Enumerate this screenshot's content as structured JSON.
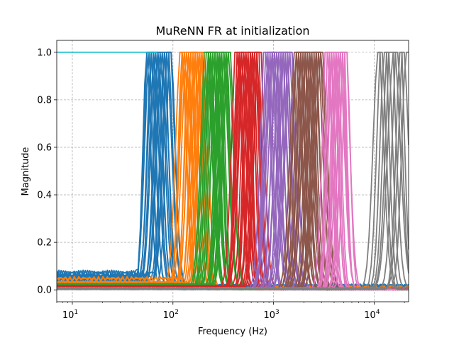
{
  "chart_data": {
    "type": "line",
    "title": "MuReNN FR at initialization",
    "xlabel": "Frequency (Hz)",
    "ylabel": "Magnitude",
    "xscale": "log",
    "xlim": [
      7,
      22000
    ],
    "ylim": [
      -0.05,
      1.05
    ],
    "grid": true,
    "grid_style": "dashed",
    "x_ticks": [
      {
        "value": 10,
        "base": "10",
        "exp": "1"
      },
      {
        "value": 100,
        "base": "10",
        "exp": "2"
      },
      {
        "value": 1000,
        "base": "10",
        "exp": "3"
      },
      {
        "value": 10000,
        "base": "10",
        "exp": "4"
      }
    ],
    "y_ticks": [
      {
        "value": 0.0,
        "label": "0.0"
      },
      {
        "value": 0.2,
        "label": "0.2"
      },
      {
        "value": 0.4,
        "label": "0.4"
      },
      {
        "value": 0.6,
        "label": "0.6"
      },
      {
        "value": 0.8,
        "label": "0.8"
      },
      {
        "value": 1.0,
        "label": "1.0"
      }
    ],
    "series": [
      {
        "color": "#1f77b4",
        "peak_hz_min": 55,
        "peak_hz_max": 95,
        "count": 16,
        "plateau_lo": 0.003,
        "plateau_hi": 0.09
      },
      {
        "color": "#ff7f0e",
        "peak_hz_min": 120,
        "peak_hz_max": 200,
        "count": 16,
        "plateau_lo": 0.01,
        "plateau_hi": 0.06
      },
      {
        "color": "#2ca02c",
        "peak_hz_min": 215,
        "peak_hz_max": 360,
        "count": 18,
        "plateau_lo": 0.005,
        "plateau_hi": 0.03
      },
      {
        "color": "#d62728",
        "peak_hz_min": 430,
        "peak_hz_max": 720,
        "count": 18,
        "plateau_lo": 0.005,
        "plateau_hi": 0.02
      },
      {
        "color": "#9467bd",
        "peak_hz_min": 830,
        "peak_hz_max": 1500,
        "count": 18,
        "plateau_lo": 0.002,
        "plateau_hi": 0.01
      },
      {
        "color": "#8c564b",
        "peak_hz_min": 1650,
        "peak_hz_max": 3000,
        "count": 18,
        "plateau_lo": 0.002,
        "plateau_hi": 0.01
      },
      {
        "color": "#e377c2",
        "peak_hz_min": 3400,
        "peak_hz_max": 5300,
        "count": 14,
        "plateau_lo": 0.002,
        "plateau_hi": 0.01
      },
      {
        "color": "#7f7f7f",
        "peak_hz_min": 11000,
        "peak_hz_max": 21000,
        "count": 10,
        "plateau_lo": 0.002,
        "plateau_hi": 0.01
      },
      {
        "color": "#17becf",
        "flat_value": 1.0,
        "x_start": 7,
        "x_end": 70
      }
    ]
  }
}
